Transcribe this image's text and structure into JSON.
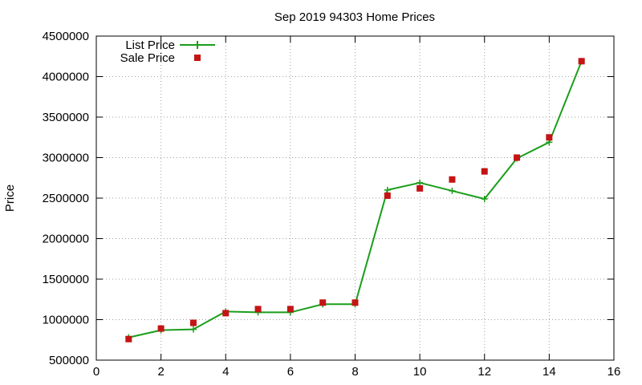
{
  "chart_data": {
    "type": "line",
    "title": "Sep 2019 94303 Home Prices",
    "xlabel": "",
    "ylabel": "Price",
    "xlim": [
      0,
      16
    ],
    "ylim": [
      500000,
      4500000
    ],
    "x_ticks": [
      0,
      2,
      4,
      6,
      8,
      10,
      12,
      14,
      16
    ],
    "y_ticks": [
      500000,
      1000000,
      1500000,
      2000000,
      2500000,
      3000000,
      3500000,
      4000000,
      4500000
    ],
    "grid": true,
    "legend_position": "top-left",
    "series": [
      {
        "name": "List Price",
        "style": "line-with-plus-markers",
        "color": "#1a9e1a",
        "x": [
          1,
          2,
          3,
          4,
          5,
          6,
          7,
          8,
          9,
          10,
          11,
          12,
          13,
          14,
          15
        ],
        "values": [
          780000,
          870000,
          880000,
          1100000,
          1090000,
          1090000,
          1190000,
          1190000,
          2600000,
          2690000,
          2590000,
          2490000,
          2990000,
          3190000,
          4190000
        ]
      },
      {
        "name": "Sale Price",
        "style": "square-markers",
        "color": "#c41414",
        "x": [
          1,
          2,
          3,
          4,
          5,
          6,
          7,
          8,
          9,
          10,
          11,
          12,
          13,
          14,
          15
        ],
        "values": [
          760000,
          890000,
          960000,
          1080000,
          1130000,
          1130000,
          1210000,
          1210000,
          2530000,
          2620000,
          2730000,
          2830000,
          3000000,
          3250000,
          4190000
        ]
      }
    ]
  }
}
